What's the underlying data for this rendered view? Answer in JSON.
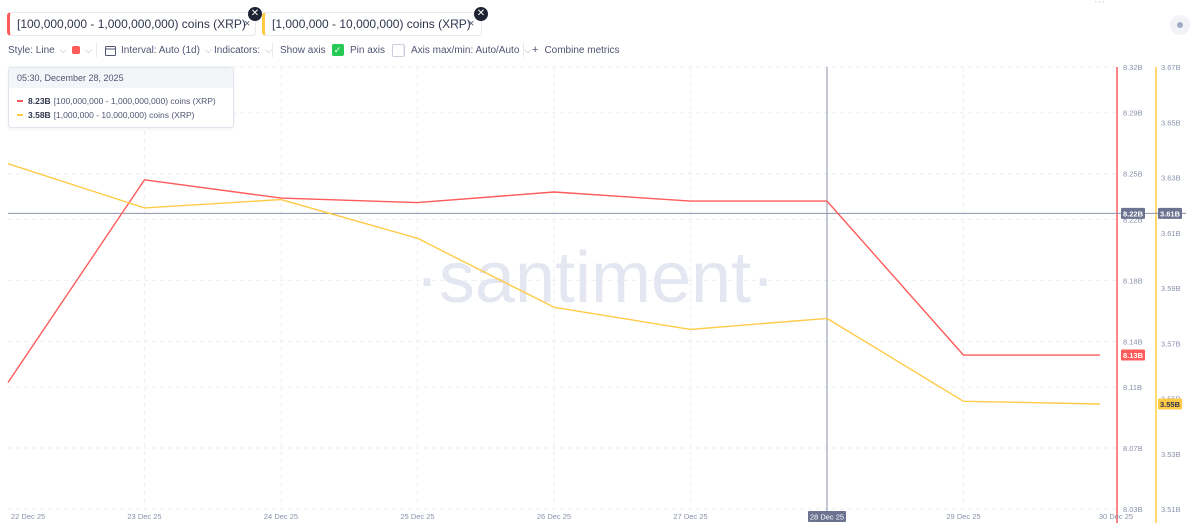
{
  "metric_tabs": [
    {
      "label": "[100,000,000 - 1,000,000,000) coins (XRP)",
      "color": "#ff5b5b"
    },
    {
      "label": "[1,000,000 - 10,000,000) coins (XRP)",
      "color": "#ffcb47"
    }
  ],
  "icons": {
    "tab_menu": "⋮",
    "tab_close": "×",
    "badge_close": "✕",
    "chevron": "⌵",
    "calendar": "calendar-icon",
    "check": "✓",
    "plus": "+",
    "ellipsis": "···"
  },
  "toolbar": {
    "style_label": "Style: Line",
    "interval_label": "Interval: Auto (1d)",
    "indicators_label": "Indicators:",
    "show_axis_label": "Show axis",
    "show_axis_checked": true,
    "pin_axis_label": "Pin axis",
    "pin_axis_checked": false,
    "axis_maxmin_label": "Axis max/min: Auto/Auto",
    "combine_label": "Combine metrics"
  },
  "tooltip": {
    "date": "05:30, December 28, 2025",
    "rows": [
      {
        "value": "8.23B",
        "label": "[100,000,000 - 1,000,000,000) coins (XRP)",
        "color": "#ff5b5b"
      },
      {
        "value": "3.58B",
        "label": "[1,000,000 - 10,000,000) coins (XRP)",
        "color": "#ffcb47"
      }
    ]
  },
  "watermark": "·santiment·",
  "chart_data": {
    "type": "line",
    "x": [
      "22 Dec 25",
      "23 Dec 25",
      "24 Dec 25",
      "25 Dec 25",
      "26 Dec 25",
      "27 Dec 25",
      "28 Dec 25",
      "29 Dec 25",
      "30 Dec 25"
    ],
    "series": [
      {
        "name": "[100,000,000 - 1,000,000,000) coins (XRP)",
        "color": "#ff5b5b",
        "axis": "left",
        "values": [
          8.113,
          8.246,
          8.234,
          8.231,
          8.238,
          8.232,
          8.232,
          8.131,
          8.131
        ]
      },
      {
        "name": "[1,000,000 - 10,000,000) coins (XRP)",
        "color": "#ffcb47",
        "axis": "right",
        "values": [
          3.635,
          3.619,
          3.622,
          3.608,
          3.583,
          3.575,
          3.579,
          3.549,
          3.548
        ]
      }
    ],
    "axis_left": {
      "min": 8.03,
      "max": 8.32,
      "ticks": [
        "8.32B",
        "8.29B",
        "8.25B",
        "8.22B",
        "8.18B",
        "8.14B",
        "8.11B",
        "8.07B",
        "8.03B"
      ],
      "tick_values": [
        8.32,
        8.29,
        8.25,
        8.22,
        8.18,
        8.14,
        8.11,
        8.07,
        8.03
      ]
    },
    "axis_right": {
      "min": 3.51,
      "max": 3.67,
      "ticks": [
        "3.67B",
        "3.65B",
        "3.63B",
        "3.61B",
        "3.59B",
        "3.57B",
        "3.55B",
        "3.53B",
        "3.51B"
      ],
      "tick_values": [
        3.67,
        3.65,
        3.63,
        3.61,
        3.59,
        3.57,
        3.55,
        3.53,
        3.51
      ]
    },
    "crosshair": {
      "x_label": "28 Dec 25",
      "left_value": 8.224,
      "left_label": "8.22B",
      "right_label": "3.61B"
    },
    "last_value_labels": {
      "left": "8.13B",
      "right": "3.55B"
    },
    "grid": true,
    "legend": "top-left tooltip"
  }
}
